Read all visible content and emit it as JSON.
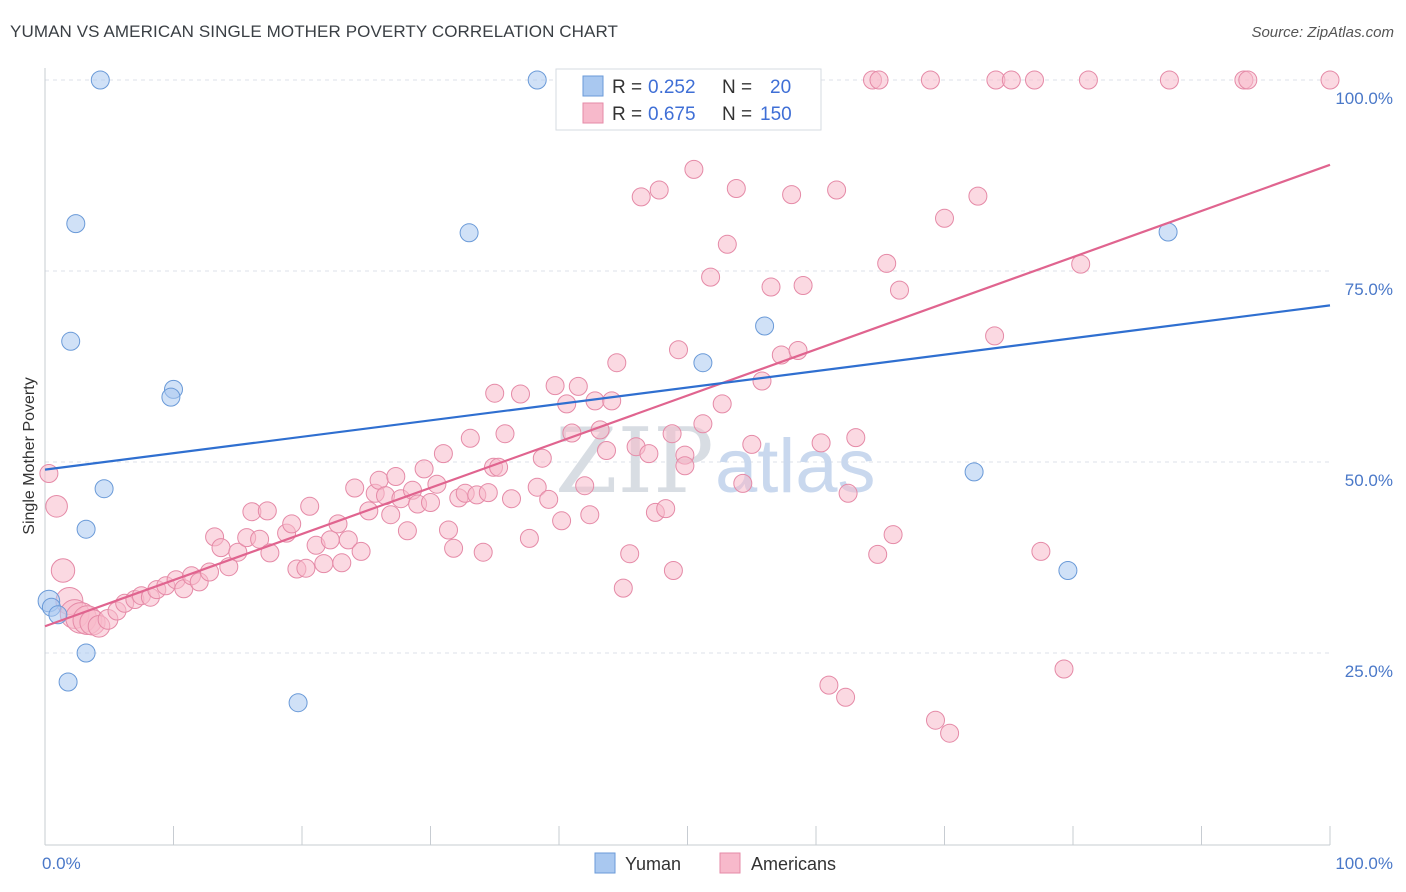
{
  "header": {
    "title": "YUMAN VS AMERICAN SINGLE MOTHER POVERTY CORRELATION CHART",
    "source": "Source: ZipAtlas.com"
  },
  "watermark": {
    "zip": "ZIP",
    "atlas": "atlas"
  },
  "colors": {
    "yuman_fill": "#a9c8f0",
    "yuman_stroke": "#6a9ad8",
    "yuman_line": "#2f6fd0",
    "americans_fill": "#f7b9cb",
    "americans_stroke": "#e58aa7",
    "americans_line": "#e0648f",
    "axis_label": "#4a78c8",
    "grid": "#dde2e8"
  },
  "legend": {
    "r_label": "R =",
    "n_label": "N =",
    "yuman_r": "0.252",
    "yuman_n": "20",
    "americans_r": "0.675",
    "americans_n": "150"
  },
  "chart_data": {
    "type": "scatter",
    "title": "YUMAN VS AMERICAN SINGLE MOTHER POVERTY CORRELATION CHART",
    "xlabel": "",
    "ylabel": "Single Mother Poverty",
    "xlim": [
      0,
      100
    ],
    "ylim": [
      0,
      100
    ],
    "x_tick_labels": [
      "0.0%",
      "100.0%"
    ],
    "y_tick_labels": [
      "25.0%",
      "50.0%",
      "75.0%",
      "100.0%"
    ],
    "y_ticks": [
      25,
      50,
      75,
      100
    ],
    "grid": true,
    "legend_position": "top-center",
    "series": [
      {
        "name": "Yuman",
        "trend": {
          "x": [
            0,
            100
          ],
          "y": [
            49.0,
            70.5
          ]
        },
        "points": [
          [
            0.3,
            31.8,
            1.2
          ],
          [
            0.5,
            31.0,
            1.0
          ],
          [
            1.8,
            21.2,
            1
          ],
          [
            3.2,
            25.0,
            1
          ],
          [
            3.2,
            41.2,
            1
          ],
          [
            2.0,
            65.8,
            1
          ],
          [
            2.4,
            81.2,
            1
          ],
          [
            4.6,
            46.5,
            1
          ],
          [
            4.3,
            100.0,
            1
          ],
          [
            10.0,
            59.5,
            1
          ],
          [
            9.8,
            58.5,
            1
          ],
          [
            19.7,
            18.5,
            1
          ],
          [
            33.0,
            80.0,
            1
          ],
          [
            38.3,
            100.0,
            1
          ],
          [
            51.2,
            63.0,
            1
          ],
          [
            56.0,
            67.8,
            1
          ],
          [
            72.3,
            48.7,
            1
          ],
          [
            79.6,
            35.8,
            1
          ],
          [
            87.4,
            80.1,
            1
          ],
          [
            1.0,
            30.0,
            1
          ]
        ]
      },
      {
        "name": "Americans",
        "trend": {
          "x": [
            0,
            100
          ],
          "y": [
            28.5,
            88.9
          ]
        },
        "points": [
          [
            0.3,
            48.5,
            1
          ],
          [
            0.9,
            44.2,
            1.2
          ],
          [
            1.4,
            35.8,
            1.3
          ],
          [
            1.9,
            31.8,
            1.5
          ],
          [
            2.3,
            30.1,
            1.6
          ],
          [
            2.8,
            29.6,
            1.7
          ],
          [
            3.3,
            29.3,
            1.6
          ],
          [
            3.7,
            29.0,
            1.4
          ],
          [
            4.2,
            28.5,
            1.2
          ],
          [
            4.9,
            29.4,
            1.1
          ],
          [
            5.6,
            30.5,
            1
          ],
          [
            6.2,
            31.5,
            1
          ],
          [
            7.0,
            32.0,
            1
          ],
          [
            7.5,
            32.5,
            1
          ],
          [
            8.2,
            32.3,
            1
          ],
          [
            8.7,
            33.3,
            1
          ],
          [
            9.4,
            33.8,
            1
          ],
          [
            10.2,
            34.6,
            1
          ],
          [
            10.8,
            33.4,
            1
          ],
          [
            11.4,
            35.1,
            1
          ],
          [
            12.0,
            34.3,
            1
          ],
          [
            12.8,
            35.6,
            1
          ],
          [
            13.2,
            40.2,
            1
          ],
          [
            13.7,
            38.8,
            1
          ],
          [
            14.3,
            36.3,
            1
          ],
          [
            15.0,
            38.2,
            1
          ],
          [
            15.7,
            40.1,
            1
          ],
          [
            16.1,
            43.5,
            1
          ],
          [
            16.7,
            39.9,
            1
          ],
          [
            17.3,
            43.6,
            1
          ],
          [
            17.5,
            38.1,
            1
          ],
          [
            18.8,
            40.7,
            1
          ],
          [
            19.2,
            41.9,
            1
          ],
          [
            19.6,
            36.0,
            1
          ],
          [
            20.3,
            36.1,
            1
          ],
          [
            20.6,
            44.2,
            1
          ],
          [
            21.1,
            39.1,
            1
          ],
          [
            21.7,
            36.7,
            1
          ],
          [
            22.2,
            39.8,
            1
          ],
          [
            22.8,
            41.9,
            1
          ],
          [
            23.1,
            36.8,
            1
          ],
          [
            23.6,
            39.8,
            1
          ],
          [
            24.1,
            46.6,
            1
          ],
          [
            24.6,
            38.3,
            1
          ],
          [
            25.2,
            43.6,
            1
          ],
          [
            25.7,
            45.9,
            1
          ],
          [
            26.0,
            47.6,
            1
          ],
          [
            26.5,
            45.6,
            1
          ],
          [
            26.9,
            43.1,
            1
          ],
          [
            27.3,
            48.1,
            1
          ],
          [
            27.7,
            45.2,
            1
          ],
          [
            28.2,
            41.0,
            1
          ],
          [
            28.6,
            46.3,
            1
          ],
          [
            29.0,
            44.5,
            1
          ],
          [
            29.5,
            49.1,
            1
          ],
          [
            30.0,
            44.7,
            1
          ],
          [
            30.5,
            47.1,
            1
          ],
          [
            31.0,
            51.1,
            1
          ],
          [
            31.4,
            41.1,
            1
          ],
          [
            31.8,
            38.7,
            1
          ],
          [
            32.2,
            45.3,
            1
          ],
          [
            32.7,
            45.9,
            1
          ],
          [
            33.1,
            53.1,
            1
          ],
          [
            33.6,
            45.7,
            1
          ],
          [
            34.1,
            38.2,
            1
          ],
          [
            34.5,
            46.0,
            1
          ],
          [
            34.9,
            49.3,
            1
          ],
          [
            35.3,
            49.3,
            1
          ],
          [
            35.8,
            53.7,
            1
          ],
          [
            36.3,
            45.2,
            1
          ],
          [
            35.0,
            59.0,
            1
          ],
          [
            37.0,
            58.9,
            1
          ],
          [
            37.7,
            40.0,
            1
          ],
          [
            38.3,
            46.7,
            1
          ],
          [
            38.7,
            50.5,
            1
          ],
          [
            39.2,
            45.1,
            1
          ],
          [
            39.7,
            60.0,
            1
          ],
          [
            40.2,
            42.3,
            1
          ],
          [
            40.6,
            57.6,
            1
          ],
          [
            41.0,
            53.8,
            1
          ],
          [
            41.5,
            59.9,
            1
          ],
          [
            42.0,
            46.9,
            1
          ],
          [
            42.4,
            43.1,
            1
          ],
          [
            42.8,
            58.0,
            1
          ],
          [
            43.2,
            54.2,
            1
          ],
          [
            43.7,
            51.5,
            1
          ],
          [
            44.1,
            58.0,
            1
          ],
          [
            44.5,
            63.0,
            1
          ],
          [
            45.0,
            33.5,
            1
          ],
          [
            45.5,
            38.0,
            1
          ],
          [
            46.0,
            52.0,
            1
          ],
          [
            46.4,
            84.7,
            1
          ],
          [
            47.0,
            51.1,
            1
          ],
          [
            47.5,
            43.4,
            1
          ],
          [
            47.8,
            85.6,
            1
          ],
          [
            48.3,
            43.9,
            1
          ],
          [
            48.8,
            53.7,
            1
          ],
          [
            49.3,
            64.7,
            1
          ],
          [
            49.8,
            50.9,
            1
          ],
          [
            50.5,
            88.3,
            1
          ],
          [
            51.2,
            55.0,
            1
          ],
          [
            51.8,
            74.2,
            1
          ],
          [
            52.7,
            57.6,
            1
          ],
          [
            53.1,
            78.5,
            1
          ],
          [
            53.8,
            85.8,
            1
          ],
          [
            54.3,
            47.2,
            1
          ],
          [
            55.0,
            52.3,
            1
          ],
          [
            55.8,
            60.6,
            1
          ],
          [
            56.5,
            72.9,
            1
          ],
          [
            57.3,
            64.0,
            1
          ],
          [
            58.1,
            85.0,
            1
          ],
          [
            58.6,
            64.6,
            1
          ],
          [
            59.0,
            73.1,
            1
          ],
          [
            60.4,
            52.5,
            1
          ],
          [
            61.0,
            20.8,
            1
          ],
          [
            61.6,
            85.6,
            1
          ],
          [
            62.3,
            19.2,
            1
          ],
          [
            62.5,
            45.9,
            1
          ],
          [
            63.1,
            53.2,
            1
          ],
          [
            64.8,
            37.9,
            1
          ],
          [
            65.5,
            76.0,
            1
          ],
          [
            66.0,
            40.5,
            1
          ],
          [
            66.5,
            72.5,
            1
          ],
          [
            69.3,
            16.2,
            1
          ],
          [
            70.0,
            81.9,
            1
          ],
          [
            70.4,
            14.5,
            1
          ],
          [
            72.6,
            84.8,
            1
          ],
          [
            73.9,
            66.5,
            1
          ],
          [
            77.5,
            38.3,
            1
          ],
          [
            79.3,
            22.9,
            1
          ],
          [
            80.6,
            75.9,
            1
          ],
          [
            53.8,
            100.0,
            1
          ],
          [
            64.4,
            100.0,
            1
          ],
          [
            64.9,
            100.0,
            1
          ],
          [
            68.9,
            100.0,
            1
          ],
          [
            74.0,
            100.0,
            1
          ],
          [
            75.2,
            100.0,
            1
          ],
          [
            77.0,
            100.0,
            1
          ],
          [
            81.2,
            100.0,
            1
          ],
          [
            87.5,
            100.0,
            1
          ],
          [
            93.3,
            100.0,
            1
          ],
          [
            93.6,
            100.0,
            1
          ],
          [
            100.0,
            100.0,
            1
          ],
          [
            48.9,
            35.8,
            1
          ],
          [
            49.8,
            49.5,
            1
          ]
        ]
      }
    ]
  },
  "bottom_legend": {
    "yuman_label": "Yuman",
    "americans_label": "Americans"
  },
  "axis": {
    "ylabel": "Single Mother Poverty",
    "x_min_label": "0.0%",
    "x_max_label": "100.0%",
    "y25": "25.0%",
    "y50": "50.0%",
    "y75": "75.0%",
    "y100": "100.0%"
  }
}
